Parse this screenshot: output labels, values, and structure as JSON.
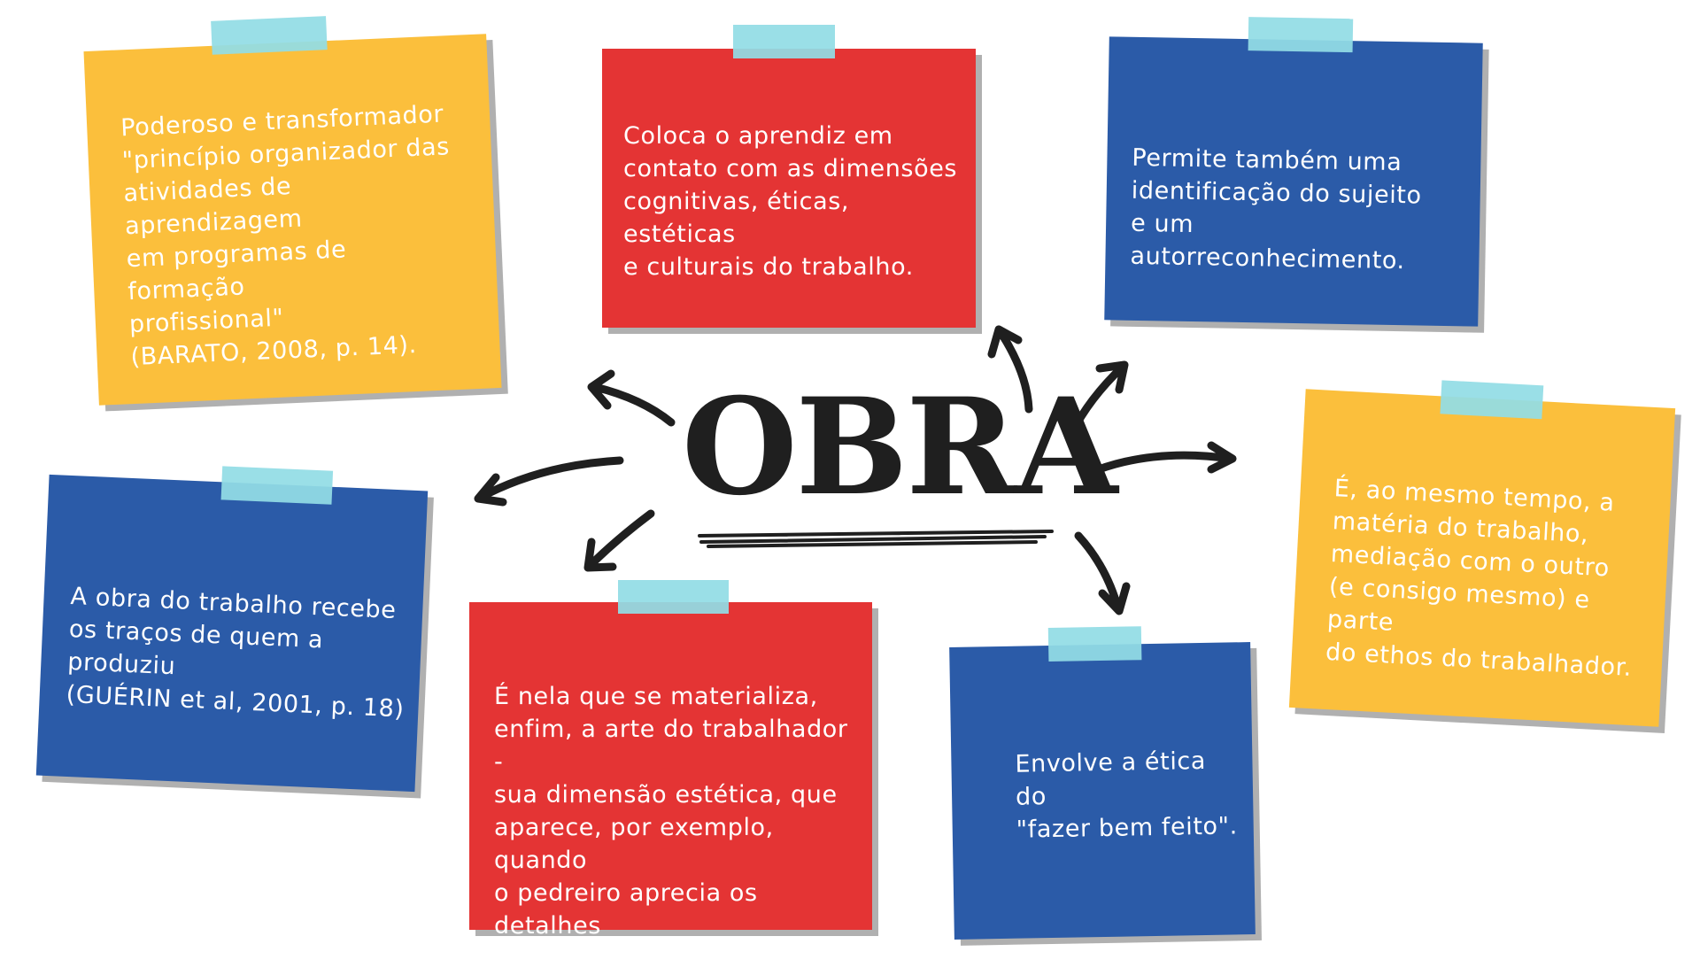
{
  "title": "OBRA",
  "colors": {
    "yellow": "#FBBF3C",
    "red": "#E43434",
    "blue": "#2B5BA8",
    "tape": "#92DDE5",
    "ink": "#1f1f1f"
  },
  "notes": [
    {
      "id": "yellow-top",
      "color": "yellow",
      "text": "Poderoso e transformador\n\"princípio organizador das\natividades de aprendizagem\nem programas de formação\nprofissional\"\n(BARATO, 2008, p. 14)."
    },
    {
      "id": "red-top",
      "color": "red",
      "text": "Coloca o aprendiz em\ncontato com as dimensões\ncognitivas, éticas, estéticas\ne culturais do trabalho."
    },
    {
      "id": "blue-top",
      "color": "blue",
      "text": "Permite também uma\nidentificação do sujeito\ne um autorreconhecimento."
    },
    {
      "id": "yellow-right",
      "color": "yellow",
      "text": "É, ao mesmo tempo, a\nmatéria do trabalho,\nmediação com o outro\n(e consigo mesmo) e parte\ndo ethos do trabalhador."
    },
    {
      "id": "blue-left",
      "color": "blue",
      "text": "A obra do trabalho recebe\nos traços de quem a produziu\n(GUÉRIN et al, 2001, p. 18)"
    },
    {
      "id": "red-bottom",
      "color": "red",
      "text": "É nela que se materializa,\nenfim, a arte do trabalhador -\nsua dimensão estética, que\naparece, por exemplo,  quando\no pedreiro aprecia os detalhes\nda casa construída;"
    },
    {
      "id": "blue-bottom",
      "color": "blue",
      "text": "Envolve a ética do\n\"fazer bem feito\"."
    }
  ]
}
